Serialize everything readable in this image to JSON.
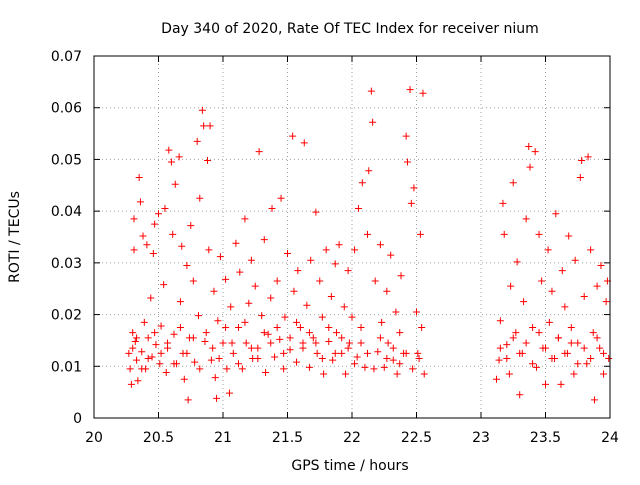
{
  "chart_data": {
    "type": "scatter",
    "title": "Day 340 of 2020, Rate Of TEC Index for receiver nium",
    "xlabel": "GPS time / hours",
    "ylabel": "ROTI / TECUs",
    "xlim": [
      20,
      24
    ],
    "ylim": [
      0,
      0.07
    ],
    "x_ticks": [
      20,
      20.5,
      21,
      21.5,
      22,
      22.5,
      23,
      23.5,
      24
    ],
    "x_tick_labels": [
      "20",
      "20.5",
      "21",
      "21.5",
      "22",
      "22.5",
      "23",
      "23.5",
      "24"
    ],
    "y_ticks": [
      0,
      0.01,
      0.02,
      0.03,
      0.04,
      0.05,
      0.06,
      0.07
    ],
    "y_tick_labels": [
      "0",
      "0.01",
      "0.02",
      "0.03",
      "0.04",
      "0.05",
      "0.06",
      "0.07"
    ],
    "grid": true,
    "marker": "plus",
    "color": "#ff0000",
    "series": [
      {
        "points": [
          [
            20.27,
            0.0125
          ],
          [
            20.28,
            0.0095
          ],
          [
            20.29,
            0.0065
          ],
          [
            20.3,
            0.0165
          ],
          [
            20.31,
            0.0385
          ],
          [
            20.31,
            0.0325
          ],
          [
            20.32,
            0.0148
          ],
          [
            20.33,
            0.0112
          ],
          [
            20.34,
            0.0072
          ],
          [
            20.35,
            0.0465
          ],
          [
            20.36,
            0.0418
          ],
          [
            20.37,
            0.0128
          ],
          [
            20.38,
            0.0352
          ],
          [
            20.39,
            0.0185
          ],
          [
            20.4,
            0.0095
          ],
          [
            20.41,
            0.0335
          ],
          [
            20.42,
            0.0155
          ],
          [
            20.44,
            0.0232
          ],
          [
            20.45,
            0.0118
          ],
          [
            20.46,
            0.0318
          ],
          [
            20.47,
            0.0375
          ],
          [
            20.48,
            0.0142
          ],
          [
            20.5,
            0.0395
          ],
          [
            20.51,
            0.0105
          ],
          [
            20.52,
            0.0178
          ],
          [
            20.54,
            0.0258
          ],
          [
            20.55,
            0.0405
          ],
          [
            20.56,
            0.0088
          ],
          [
            20.57,
            0.0135
          ],
          [
            20.58,
            0.0518
          ],
          [
            20.6,
            0.0495
          ],
          [
            20.61,
            0.0355
          ],
          [
            20.62,
            0.0162
          ],
          [
            20.63,
            0.0452
          ],
          [
            20.64,
            0.0105
          ],
          [
            20.66,
            0.0505
          ],
          [
            20.67,
            0.0225
          ],
          [
            20.68,
            0.0332
          ],
          [
            20.69,
            0.0125
          ],
          [
            20.7,
            0.0075
          ],
          [
            20.72,
            0.0295
          ],
          [
            20.73,
            0.0035
          ],
          [
            20.74,
            0.0155
          ],
          [
            20.75,
            0.0372
          ],
          [
            20.77,
            0.0265
          ],
          [
            20.78,
            0.0108
          ],
          [
            20.8,
            0.0535
          ],
          [
            20.81,
            0.0198
          ],
          [
            20.82,
            0.0425
          ],
          [
            20.84,
            0.0595
          ],
          [
            20.85,
            0.0565
          ],
          [
            20.86,
            0.0148
          ],
          [
            20.88,
            0.0498
          ],
          [
            20.89,
            0.0325
          ],
          [
            20.9,
            0.0565
          ],
          [
            20.91,
            0.0112
          ],
          [
            20.93,
            0.0245
          ],
          [
            20.94,
            0.0078
          ],
          [
            20.95,
            0.0038
          ],
          [
            20.96,
            0.0188
          ],
          [
            20.98,
            0.0312
          ],
          [
            21.0,
            0.0145
          ],
          [
            21.02,
            0.0268
          ],
          [
            21.03,
            0.0095
          ],
          [
            21.05,
            0.0048
          ],
          [
            21.06,
            0.0215
          ],
          [
            21.08,
            0.0125
          ],
          [
            21.1,
            0.0338
          ],
          [
            21.12,
            0.0175
          ],
          [
            21.13,
            0.0282
          ],
          [
            21.15,
            0.0095
          ],
          [
            21.17,
            0.0385
          ],
          [
            21.18,
            0.0145
          ],
          [
            21.2,
            0.0222
          ],
          [
            21.22,
            0.0305
          ],
          [
            21.23,
            0.0115
          ],
          [
            21.25,
            0.0255
          ],
          [
            21.27,
            0.0135
          ],
          [
            21.28,
            0.0515
          ],
          [
            21.3,
            0.0198
          ],
          [
            21.32,
            0.0345
          ],
          [
            21.33,
            0.0088
          ],
          [
            21.35,
            0.0162
          ],
          [
            21.37,
            0.0232
          ],
          [
            21.38,
            0.0405
          ],
          [
            21.4,
            0.0118
          ],
          [
            21.42,
            0.0265
          ],
          [
            21.44,
            0.0152
          ],
          [
            21.45,
            0.0425
          ],
          [
            21.47,
            0.0095
          ],
          [
            21.48,
            0.0195
          ],
          [
            21.5,
            0.0318
          ],
          [
            21.52,
            0.0132
          ],
          [
            21.54,
            0.0545
          ],
          [
            21.55,
            0.0245
          ],
          [
            21.57,
            0.0108
          ],
          [
            21.58,
            0.0285
          ],
          [
            21.6,
            0.0175
          ],
          [
            21.62,
            0.0145
          ],
          [
            21.63,
            0.0532
          ],
          [
            21.65,
            0.0218
          ],
          [
            21.67,
            0.0098
          ],
          [
            21.68,
            0.0305
          ],
          [
            21.7,
            0.0155
          ],
          [
            21.72,
            0.0398
          ],
          [
            21.73,
            0.0125
          ],
          [
            21.75,
            0.0265
          ],
          [
            21.77,
            0.0195
          ],
          [
            21.78,
            0.0085
          ],
          [
            21.8,
            0.0325
          ],
          [
            21.82,
            0.0148
          ],
          [
            21.84,
            0.0235
          ],
          [
            21.85,
            0.0112
          ],
          [
            21.87,
            0.0298
          ],
          [
            21.88,
            0.0165
          ],
          [
            21.9,
            0.0335
          ],
          [
            21.92,
            0.0125
          ],
          [
            21.94,
            0.0215
          ],
          [
            21.95,
            0.0085
          ],
          [
            21.97,
            0.0285
          ],
          [
            21.98,
            0.0145
          ],
          [
            22.0,
            0.0195
          ],
          [
            22.02,
            0.0325
          ],
          [
            22.04,
            0.0118
          ],
          [
            22.05,
            0.0405
          ],
          [
            22.07,
            0.0175
          ],
          [
            22.08,
            0.0455
          ],
          [
            22.1,
            0.0098
          ],
          [
            22.12,
            0.0355
          ],
          [
            22.13,
            0.0478
          ],
          [
            22.15,
            0.0632
          ],
          [
            22.16,
            0.0572
          ],
          [
            22.18,
            0.0265
          ],
          [
            22.2,
            0.0128
          ],
          [
            22.22,
            0.0335
          ],
          [
            22.23,
            0.0185
          ],
          [
            22.25,
            0.0098
          ],
          [
            22.27,
            0.0245
          ],
          [
            22.28,
            0.0145
          ],
          [
            22.3,
            0.0315
          ],
          [
            22.32,
            0.0112
          ],
          [
            22.34,
            0.0205
          ],
          [
            22.35,
            0.0085
          ],
          [
            22.37,
            0.0165
          ],
          [
            22.38,
            0.0275
          ],
          [
            22.4,
            0.0125
          ],
          [
            22.42,
            0.0545
          ],
          [
            22.43,
            0.0495
          ],
          [
            22.45,
            0.0635
          ],
          [
            22.46,
            0.0415
          ],
          [
            22.48,
            0.0445
          ],
          [
            22.5,
            0.0205
          ],
          [
            22.51,
            0.0125
          ],
          [
            22.53,
            0.0355
          ],
          [
            22.54,
            0.0175
          ],
          [
            22.55,
            0.0628
          ],
          [
            22.56,
            0.0085
          ],
          [
            20.3,
            0.0135
          ],
          [
            20.33,
            0.0155
          ],
          [
            20.37,
            0.0095
          ],
          [
            20.42,
            0.0115
          ],
          [
            20.47,
            0.0165
          ],
          [
            20.52,
            0.0125
          ],
          [
            20.57,
            0.0145
          ],
          [
            20.62,
            0.0105
          ],
          [
            20.67,
            0.0175
          ],
          [
            20.72,
            0.0125
          ],
          [
            20.77,
            0.0155
          ],
          [
            20.82,
            0.0095
          ],
          [
            20.87,
            0.0165
          ],
          [
            20.92,
            0.0135
          ],
          [
            20.97,
            0.0115
          ],
          [
            21.02,
            0.0175
          ],
          [
            21.07,
            0.0145
          ],
          [
            21.12,
            0.0105
          ],
          [
            21.17,
            0.0185
          ],
          [
            21.22,
            0.0135
          ],
          [
            21.27,
            0.0115
          ],
          [
            21.32,
            0.0165
          ],
          [
            21.37,
            0.0145
          ],
          [
            21.42,
            0.0175
          ],
          [
            21.47,
            0.0125
          ],
          [
            21.52,
            0.0155
          ],
          [
            21.57,
            0.0185
          ],
          [
            21.62,
            0.0135
          ],
          [
            21.67,
            0.0165
          ],
          [
            21.72,
            0.0145
          ],
          [
            21.77,
            0.0115
          ],
          [
            21.82,
            0.0175
          ],
          [
            21.87,
            0.0125
          ],
          [
            21.92,
            0.0155
          ],
          [
            21.97,
            0.0135
          ],
          [
            22.02,
            0.0105
          ],
          [
            22.07,
            0.0145
          ],
          [
            22.12,
            0.0125
          ],
          [
            22.17,
            0.0095
          ],
          [
            22.22,
            0.0155
          ],
          [
            22.27,
            0.0115
          ],
          [
            22.32,
            0.0135
          ],
          [
            22.37,
            0.0105
          ],
          [
            22.42,
            0.0125
          ],
          [
            22.47,
            0.0095
          ],
          [
            22.52,
            0.0115
          ],
          [
            23.12,
            0.0075
          ],
          [
            23.14,
            0.0112
          ],
          [
            23.15,
            0.0188
          ],
          [
            23.17,
            0.0415
          ],
          [
            23.18,
            0.0355
          ],
          [
            23.2,
            0.0142
          ],
          [
            23.22,
            0.0085
          ],
          [
            23.23,
            0.0255
          ],
          [
            23.25,
            0.0455
          ],
          [
            23.27,
            0.0165
          ],
          [
            23.28,
            0.0302
          ],
          [
            23.3,
            0.0045
          ],
          [
            23.32,
            0.0125
          ],
          [
            23.33,
            0.0225
          ],
          [
            23.35,
            0.0385
          ],
          [
            23.37,
            0.0525
          ],
          [
            23.38,
            0.0485
          ],
          [
            23.4,
            0.0175
          ],
          [
            23.42,
            0.0515
          ],
          [
            23.43,
            0.0098
          ],
          [
            23.45,
            0.0355
          ],
          [
            23.47,
            0.0265
          ],
          [
            23.48,
            0.0135
          ],
          [
            23.5,
            0.0065
          ],
          [
            23.52,
            0.0325
          ],
          [
            23.53,
            0.0185
          ],
          [
            23.55,
            0.0245
          ],
          [
            23.57,
            0.0115
          ],
          [
            23.58,
            0.0395
          ],
          [
            23.6,
            0.0155
          ],
          [
            23.62,
            0.0065
          ],
          [
            23.63,
            0.0285
          ],
          [
            23.65,
            0.0215
          ],
          [
            23.67,
            0.0125
          ],
          [
            23.68,
            0.0352
          ],
          [
            23.7,
            0.0175
          ],
          [
            23.72,
            0.0085
          ],
          [
            23.73,
            0.0305
          ],
          [
            23.75,
            0.0145
          ],
          [
            23.77,
            0.0465
          ],
          [
            23.78,
            0.0498
          ],
          [
            23.8,
            0.0235
          ],
          [
            23.82,
            0.0105
          ],
          [
            23.83,
            0.0505
          ],
          [
            23.85,
            0.0325
          ],
          [
            23.87,
            0.0165
          ],
          [
            23.88,
            0.0035
          ],
          [
            23.9,
            0.0255
          ],
          [
            23.92,
            0.0135
          ],
          [
            23.93,
            0.0295
          ],
          [
            23.95,
            0.0085
          ],
          [
            23.97,
            0.0225
          ],
          [
            23.98,
            0.0265
          ],
          [
            23.99,
            0.0115
          ],
          [
            23.15,
            0.0135
          ],
          [
            23.2,
            0.0115
          ],
          [
            23.25,
            0.0155
          ],
          [
            23.3,
            0.0125
          ],
          [
            23.35,
            0.0145
          ],
          [
            23.4,
            0.0105
          ],
          [
            23.45,
            0.0165
          ],
          [
            23.5,
            0.0135
          ],
          [
            23.55,
            0.0115
          ],
          [
            23.6,
            0.0155
          ],
          [
            23.65,
            0.0125
          ],
          [
            23.7,
            0.0145
          ],
          [
            23.75,
            0.0105
          ],
          [
            23.8,
            0.0135
          ],
          [
            23.85,
            0.0115
          ],
          [
            23.9,
            0.0155
          ],
          [
            23.95,
            0.0125
          ]
        ]
      }
    ]
  }
}
